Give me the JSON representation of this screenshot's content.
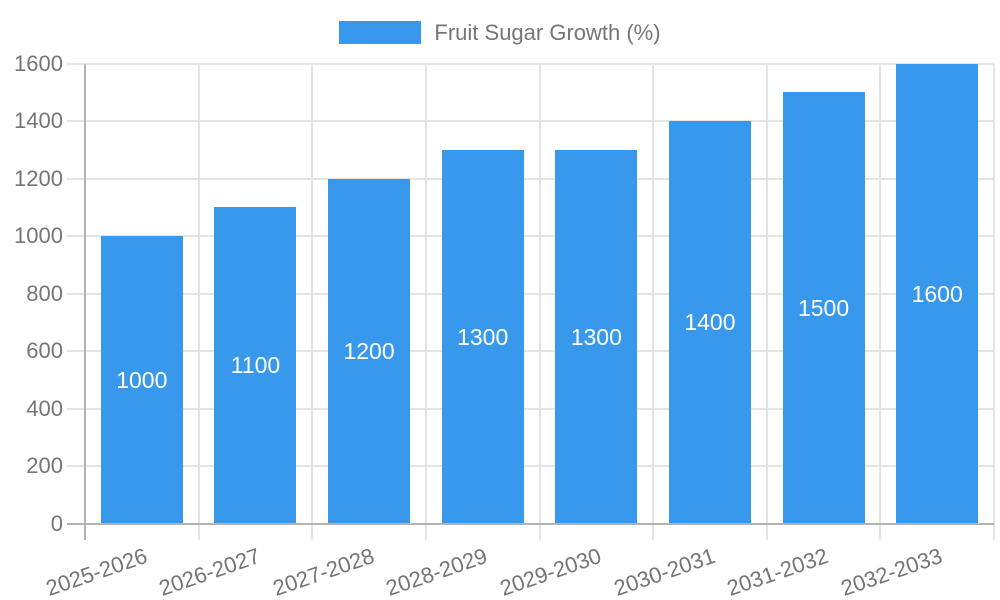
{
  "legend": {
    "label": "Fruit Sugar Growth (%)"
  },
  "chart_data": {
    "type": "bar",
    "title": "Fruit Sugar Growth (%)",
    "categories": [
      "2025-2026",
      "2026-2027",
      "2027-2028",
      "2028-2029",
      "2029-2030",
      "2030-2031",
      "2031-2032",
      "2032-2033"
    ],
    "values": [
      1000,
      1100,
      1200,
      1300,
      1300,
      1400,
      1500,
      1600
    ],
    "value_labels": [
      "1000",
      "1100",
      "1200",
      "1300",
      "1300",
      "1400",
      "1500",
      "1600"
    ],
    "y_ticks": [
      0,
      200,
      400,
      600,
      800,
      1000,
      1200,
      1400,
      1600
    ],
    "ylim": [
      0,
      1600
    ],
    "xlabel": "",
    "ylabel": "",
    "grid": true,
    "legend_position": "top-center",
    "value_label_position": "inside-center",
    "x_tick_rotation_deg": -19
  },
  "colors": {
    "bar": "#3898EC",
    "grid": "#E4E4E4",
    "axis": "#B2B2B2",
    "tick_label": "#757575",
    "value_label": "#FFFFFF",
    "background": "#FFFFFF"
  }
}
